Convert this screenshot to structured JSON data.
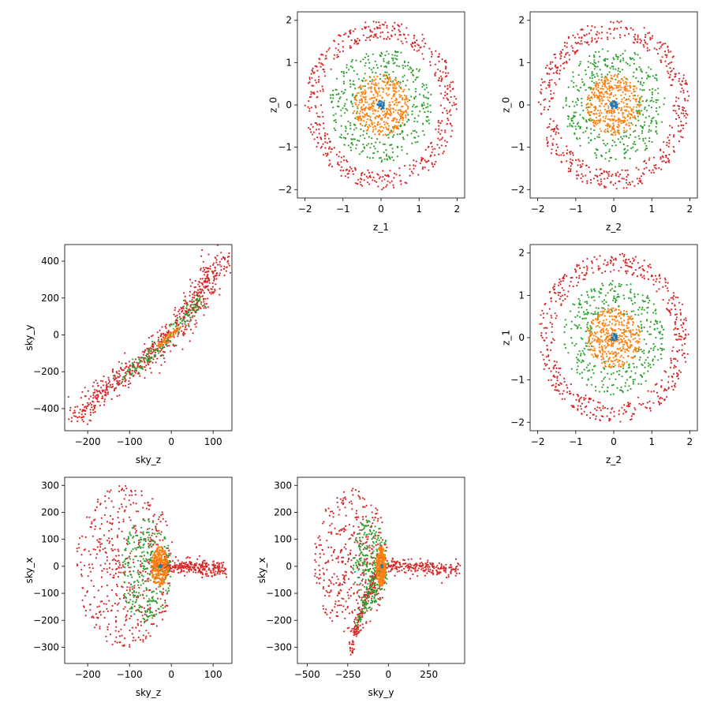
{
  "colors": {
    "series0": "#1f77b4",
    "series1": "#ff7f0e",
    "series2": "#2ca02c",
    "series3": "#d62728"
  },
  "chart_data": [
    {
      "type": "scatter",
      "id": "z0-vs-z1",
      "xlabel": "z_1",
      "ylabel": "z_0",
      "xlim": [
        -2.2,
        2.2
      ],
      "ylim": [
        -2.2,
        2.2
      ],
      "xticks": [
        -2,
        -1,
        0,
        1,
        2
      ],
      "yticks": [
        -2,
        -1,
        0,
        1,
        2
      ],
      "xtick_labels": [
        "−2",
        "−1",
        "0",
        "1",
        "2"
      ],
      "ytick_labels": [
        "−2",
        "−1",
        "0",
        "1",
        "2"
      ],
      "grid": false,
      "series": [
        {
          "color_key": "series3",
          "shape": "ring",
          "center": [
            0,
            0
          ],
          "r_inner": 1.55,
          "r_outer": 2.0,
          "count": 520
        },
        {
          "color_key": "series2",
          "shape": "ring",
          "center": [
            0,
            0
          ],
          "r_inner": 0.6,
          "r_outer": 1.35,
          "count": 380
        },
        {
          "color_key": "series1",
          "shape": "ring",
          "center": [
            0,
            0
          ],
          "r_inner": 0.0,
          "r_outer": 0.72,
          "count": 420
        },
        {
          "color_key": "series0",
          "shape": "ring",
          "center": [
            0,
            0
          ],
          "r_inner": 0.0,
          "r_outer": 0.1,
          "count": 40
        }
      ]
    },
    {
      "type": "scatter",
      "id": "z0-vs-z2",
      "xlabel": "z_2",
      "ylabel": "z_0",
      "xlim": [
        -2.2,
        2.2
      ],
      "ylim": [
        -2.2,
        2.2
      ],
      "xticks": [
        -2,
        -1,
        0,
        1,
        2
      ],
      "yticks": [
        -2,
        -1,
        0,
        1,
        2
      ],
      "xtick_labels": [
        "−2",
        "−1",
        "0",
        "1",
        "2"
      ],
      "ytick_labels": [
        "−2",
        "−1",
        "0",
        "1",
        "2"
      ],
      "grid": false,
      "series": [
        {
          "color_key": "series3",
          "shape": "ring",
          "center": [
            0,
            0
          ],
          "r_inner": 1.55,
          "r_outer": 2.0,
          "count": 520
        },
        {
          "color_key": "series2",
          "shape": "ring",
          "center": [
            0,
            0
          ],
          "r_inner": 0.6,
          "r_outer": 1.35,
          "count": 380
        },
        {
          "color_key": "series1",
          "shape": "ring",
          "center": [
            0,
            0
          ],
          "r_inner": 0.0,
          "r_outer": 0.72,
          "count": 420
        },
        {
          "color_key": "series0",
          "shape": "ring",
          "center": [
            0,
            0
          ],
          "r_inner": 0.0,
          "r_outer": 0.1,
          "count": 40
        }
      ]
    },
    {
      "type": "scatter",
      "id": "skyy-vs-skyz",
      "xlabel": "sky_z",
      "ylabel": "sky_y",
      "xlim": [
        -255,
        145
      ],
      "ylim": [
        -520,
        490
      ],
      "xticks": [
        -200,
        -100,
        0,
        100
      ],
      "yticks": [
        -400,
        -200,
        0,
        200,
        400
      ],
      "xtick_labels": [
        "−200",
        "−100",
        "0",
        "100"
      ],
      "ytick_labels": [
        "−400",
        "−200",
        "0",
        "200",
        "400"
      ],
      "grid": false,
      "series": [
        {
          "color_key": "series3",
          "shape": "band",
          "path": [
            [
              -230,
              -460
            ],
            [
              -190,
              -370
            ],
            [
              -150,
              -280
            ],
            [
              -110,
              -200
            ],
            [
              -80,
              -175
            ],
            [
              -50,
              -120
            ],
            [
              -25,
              -60
            ],
            [
              0,
              0
            ],
            [
              30,
              80
            ],
            [
              60,
              200
            ],
            [
              95,
              330
            ],
            [
              125,
              420
            ]
          ],
          "spread": 28,
          "count": 700
        },
        {
          "color_key": "series2",
          "shape": "band",
          "path": [
            [
              -115,
              -240
            ],
            [
              -90,
              -180
            ],
            [
              -60,
              -130
            ],
            [
              -30,
              -70
            ],
            [
              0,
              0
            ],
            [
              30,
              80
            ],
            [
              70,
              210
            ]
          ],
          "spread": 18,
          "count": 160
        },
        {
          "color_key": "series1",
          "shape": "band",
          "path": [
            [
              -30,
              -60
            ],
            [
              0,
              0
            ],
            [
              20,
              40
            ]
          ],
          "spread": 8,
          "count": 60
        }
      ]
    },
    {
      "type": "scatter",
      "id": "z1-vs-z2",
      "xlabel": "z_2",
      "ylabel": "z_1",
      "xlim": [
        -2.2,
        2.2
      ],
      "ylim": [
        -2.2,
        2.2
      ],
      "xticks": [
        -2,
        -1,
        0,
        1,
        2
      ],
      "yticks": [
        -2,
        -1,
        0,
        1,
        2
      ],
      "xtick_labels": [
        "−2",
        "−1",
        "0",
        "1",
        "2"
      ],
      "ytick_labels": [
        "−2",
        "−1",
        "0",
        "1",
        "2"
      ],
      "grid": false,
      "series": [
        {
          "color_key": "series3",
          "shape": "ring",
          "center": [
            0,
            0
          ],
          "r_inner": 1.55,
          "r_outer": 2.0,
          "count": 520
        },
        {
          "color_key": "series2",
          "shape": "ring",
          "center": [
            0,
            0
          ],
          "r_inner": 0.6,
          "r_outer": 1.35,
          "count": 380
        },
        {
          "color_key": "series1",
          "shape": "ring",
          "center": [
            0,
            0
          ],
          "r_inner": 0.0,
          "r_outer": 0.72,
          "count": 420
        },
        {
          "color_key": "series0",
          "shape": "ring",
          "center": [
            0,
            0
          ],
          "r_inner": 0.0,
          "r_outer": 0.1,
          "count": 40
        }
      ]
    },
    {
      "type": "scatter",
      "id": "skyx-vs-skyz",
      "xlabel": "sky_z",
      "ylabel": "sky_x",
      "xlim": [
        -255,
        145
      ],
      "ylim": [
        -360,
        330
      ],
      "xticks": [
        -200,
        -100,
        0,
        100
      ],
      "yticks": [
        -300,
        -200,
        -100,
        0,
        100,
        200,
        300
      ],
      "xtick_labels": [
        "−200",
        "−100",
        "0",
        "100"
      ],
      "ytick_labels": [
        "−300",
        "−200",
        "−100",
        "0",
        "100",
        "200",
        "300"
      ],
      "grid": false,
      "series": [
        {
          "color_key": "series3",
          "shape": "cloud",
          "center": [
            -110,
            0
          ],
          "rx": 120,
          "ry": 300,
          "count": 500
        },
        {
          "color_key": "series3",
          "shape": "band",
          "path": [
            [
              -30,
              0
            ],
            [
              20,
              0
            ],
            [
              70,
              -5
            ],
            [
              125,
              -12
            ]
          ],
          "spread": 14,
          "count": 300
        },
        {
          "color_key": "series2",
          "shape": "cloud",
          "center": [
            -60,
            -15
          ],
          "rx": 60,
          "ry": 195,
          "count": 300
        },
        {
          "color_key": "series1",
          "shape": "cloud",
          "center": [
            -28,
            0
          ],
          "rx": 20,
          "ry": 75,
          "count": 300
        },
        {
          "color_key": "series0",
          "shape": "cloud",
          "center": [
            -25,
            0
          ],
          "rx": 4,
          "ry": 6,
          "count": 20
        }
      ]
    },
    {
      "type": "scatter",
      "id": "skyx-vs-skyy",
      "xlabel": "sky_y",
      "ylabel": "sky_x",
      "xlim": [
        -560,
        470
      ],
      "ylim": [
        -360,
        330
      ],
      "xticks": [
        -500,
        -250,
        0,
        250
      ],
      "yticks": [
        -300,
        -200,
        -100,
        0,
        100,
        200,
        300
      ],
      "xtick_labels": [
        "−500",
        "−250",
        "0",
        "250"
      ],
      "ytick_labels": [
        "−300",
        "−200",
        "−100",
        "0",
        "100",
        "200",
        "300"
      ],
      "grid": false,
      "series": [
        {
          "color_key": "series3",
          "shape": "cloud",
          "center": [
            -230,
            20
          ],
          "rx": 230,
          "ry": 270,
          "count": 420
        },
        {
          "color_key": "series3",
          "shape": "band",
          "path": [
            [
              -230,
              -320
            ],
            [
              -180,
              -200
            ],
            [
              -130,
              -110
            ],
            [
              -80,
              -40
            ],
            [
              -40,
              0
            ],
            [
              50,
              0
            ],
            [
              200,
              -5
            ],
            [
              440,
              -12
            ]
          ],
          "spread": 14,
          "count": 420
        },
        {
          "color_key": "series2",
          "shape": "cloud",
          "center": [
            -110,
            10
          ],
          "rx": 110,
          "ry": 170,
          "count": 250
        },
        {
          "color_key": "series2",
          "shape": "band",
          "path": [
            [
              -190,
              -220
            ],
            [
              -140,
              -130
            ],
            [
              -90,
              -60
            ],
            [
              -50,
              0
            ]
          ],
          "spread": 18,
          "count": 80
        },
        {
          "color_key": "series1",
          "shape": "cloud",
          "center": [
            -45,
            0
          ],
          "rx": 30,
          "ry": 75,
          "count": 300
        },
        {
          "color_key": "series0",
          "shape": "cloud",
          "center": [
            -40,
            0
          ],
          "rx": 5,
          "ry": 6,
          "count": 20
        }
      ]
    }
  ]
}
